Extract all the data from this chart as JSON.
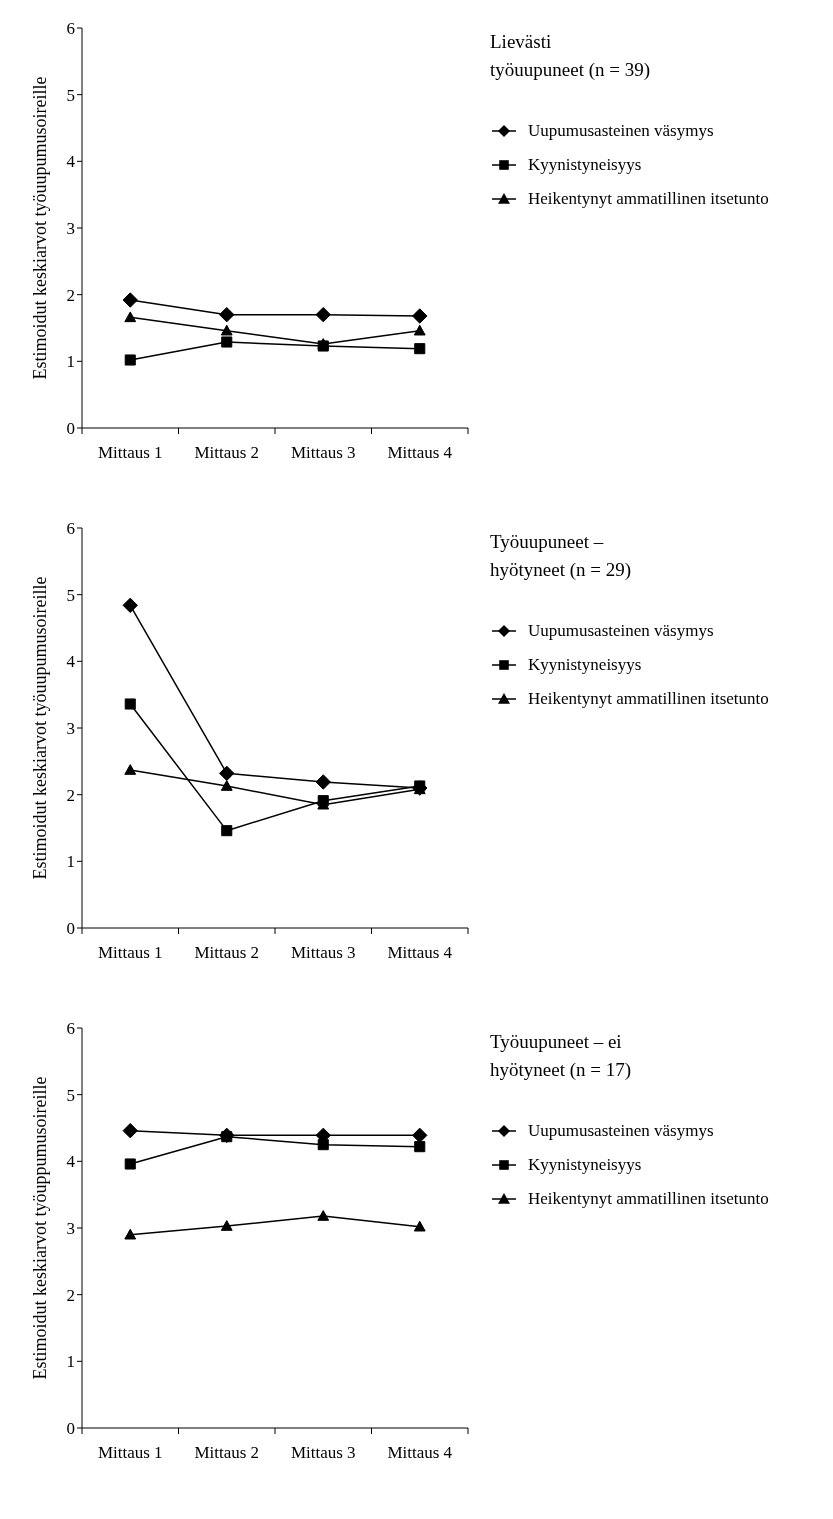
{
  "chart_data": [
    {
      "type": "line",
      "legend_title": "Lievästi\ntyöuupuneet  (n = 39)",
      "ylabel": "Estimoidut keskiarvot työuupumusoireille",
      "categories": [
        "Mittaus 1",
        "Mittaus 2",
        "Mittaus 3",
        "Mittaus 4"
      ],
      "ylim": [
        0,
        6
      ],
      "yticks": [
        0,
        1,
        2,
        3,
        4,
        5,
        6
      ],
      "grid": false,
      "legend": "right",
      "line_style": "solid",
      "series": [
        {
          "name": "Uupumusasteinen väsymys",
          "color": "#000000",
          "marker": "diamond",
          "values": [
            1.92,
            1.7,
            1.7,
            1.68
          ]
        },
        {
          "name": "Kyynistyneisyys",
          "color": "#000000",
          "marker": "square",
          "values": [
            1.02,
            1.29,
            1.23,
            1.19
          ]
        },
        {
          "name": "Heikentynyt ammatillinen itsetunto",
          "color": "#000000",
          "marker": "triangle",
          "values": [
            1.66,
            1.46,
            1.26,
            1.46
          ]
        }
      ]
    },
    {
      "type": "line",
      "legend_title": "Työuupuneet –\nhyötyneet  (n = 29)",
      "ylabel": "Estimoidut keskiarvot työuupumusoireille",
      "categories": [
        "Mittaus 1",
        "Mittaus 2",
        "Mittaus 3",
        "Mittaus 4"
      ],
      "ylim": [
        0,
        6
      ],
      "yticks": [
        0,
        1,
        2,
        3,
        4,
        5,
        6
      ],
      "grid": false,
      "legend": "right",
      "line_style": "solid",
      "series": [
        {
          "name": "Uupumusasteinen väsymys",
          "color": "#000000",
          "marker": "diamond",
          "values": [
            4.84,
            2.32,
            2.19,
            2.1
          ]
        },
        {
          "name": "Kyynistyneisyys",
          "color": "#000000",
          "marker": "square",
          "values": [
            3.36,
            1.46,
            1.91,
            2.13
          ]
        },
        {
          "name": "Heikentynyt ammatillinen itsetunto",
          "color": "#000000",
          "marker": "triangle",
          "values": [
            2.37,
            2.13,
            1.85,
            2.08
          ]
        }
      ]
    },
    {
      "type": "line",
      "legend_title": "Työuupuneet – ei\nhyötyneet (n = 17)",
      "ylabel": "Estimoidut keskiarvot työuppumusoireille",
      "categories": [
        "Mittaus 1",
        "Mittaus 2",
        "Mittaus 3",
        "Mittaus 4"
      ],
      "ylim": [
        0,
        6
      ],
      "yticks": [
        0,
        1,
        2,
        3,
        4,
        5,
        6
      ],
      "grid": false,
      "legend": "right",
      "line_style": "solid",
      "series": [
        {
          "name": "Uupumusasteinen väsymys",
          "color": "#000000",
          "marker": "diamond",
          "values": [
            4.46,
            4.39,
            4.39,
            4.39
          ]
        },
        {
          "name": "Kyynistyneisyys",
          "color": "#000000",
          "marker": "square",
          "values": [
            3.96,
            4.37,
            4.25,
            4.22
          ]
        },
        {
          "name": "Heikentynyt ammatillinen itsetunto",
          "color": "#000000",
          "marker": "triangle",
          "values": [
            2.9,
            3.03,
            3.18,
            3.02
          ]
        }
      ]
    }
  ]
}
